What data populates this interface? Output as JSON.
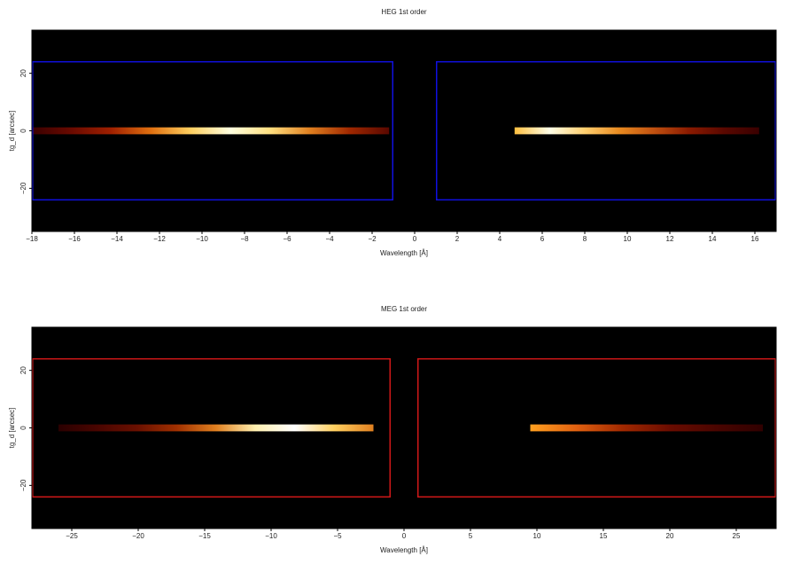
{
  "chart_data": [
    {
      "type": "heatmap",
      "title": "HEG 1st order",
      "xlabel": "Wavelength [Å]",
      "ylabel": "tg_d [arcsec]",
      "xlim": [
        -18,
        17
      ],
      "ylim": [
        -35,
        35
      ],
      "xticks": [
        {
          "value": -18,
          "label": "−18"
        },
        {
          "value": -16,
          "label": "−16"
        },
        {
          "value": -14,
          "label": "−14"
        },
        {
          "value": -12,
          "label": "−12"
        },
        {
          "value": -10,
          "label": "−10"
        },
        {
          "value": -8,
          "label": "−8"
        },
        {
          "value": -6,
          "label": "−6"
        },
        {
          "value": -4,
          "label": "−4"
        },
        {
          "value": -2,
          "label": "−2"
        },
        0,
        2,
        4,
        6,
        8,
        10,
        12,
        14,
        16
      ],
      "yticks": [
        {
          "value": -20,
          "label": "−20"
        },
        0,
        20
      ],
      "background": "#000000",
      "box_color": "#1010e0",
      "boxes": [
        {
          "x": [
            -18,
            -1
          ],
          "y": [
            -24,
            24
          ]
        },
        {
          "x": [
            1,
            17
          ],
          "y": [
            -24,
            24
          ]
        }
      ],
      "stripes": [
        {
          "x": [
            -18,
            -1.2
          ],
          "y": [
            -1.2,
            1.2
          ],
          "colors": [
            "#3a0000",
            "#6a0a00",
            "#a02000",
            "#e07010",
            "#ffd060",
            "#ffffe0",
            "#ffe080",
            "#e08020",
            "#a02800",
            "#5a0800"
          ]
        },
        {
          "x": [
            4.7,
            16.2
          ],
          "y": [
            -1.2,
            1.2
          ],
          "colors": [
            "#ffc040",
            "#ffffe8",
            "#ffd070",
            "#e88a20",
            "#c05010",
            "#8a1a00",
            "#5a0800",
            "#3a0000"
          ]
        }
      ]
    },
    {
      "type": "heatmap",
      "title": "MEG 1st order",
      "xlabel": "Wavelength [Å]",
      "ylabel": "tg_d [arcsec]",
      "xlim": [
        -28,
        28
      ],
      "ylim": [
        -35,
        35
      ],
      "xticks": [
        {
          "value": -25,
          "label": "−25"
        },
        {
          "value": -20,
          "label": "−20"
        },
        {
          "value": -15,
          "label": "−15"
        },
        {
          "value": -10,
          "label": "−10"
        },
        {
          "value": -5,
          "label": "−5"
        },
        0,
        5,
        10,
        15,
        20,
        25
      ],
      "yticks": [
        {
          "value": -20,
          "label": "−20"
        },
        0,
        20
      ],
      "background": "#000000",
      "box_color": "#d01818",
      "boxes": [
        {
          "x": [
            -28,
            -1
          ],
          "y": [
            -24,
            24
          ]
        },
        {
          "x": [
            1,
            28
          ],
          "y": [
            -24,
            24
          ]
        }
      ],
      "stripes": [
        {
          "x": [
            -26,
            -2.3
          ],
          "y": [
            -1.2,
            1.2
          ],
          "colors": [
            "#2a0000",
            "#4a0500",
            "#6a1000",
            "#a03000",
            "#e08020",
            "#fff0b0",
            "#ffffff",
            "#ffd060",
            "#e08020"
          ]
        },
        {
          "x": [
            9.5,
            27
          ],
          "y": [
            -1.2,
            1.2
          ],
          "colors": [
            "#ffa020",
            "#e06010",
            "#a02800",
            "#6a0c00",
            "#4a0500",
            "#300000"
          ]
        }
      ]
    }
  ]
}
